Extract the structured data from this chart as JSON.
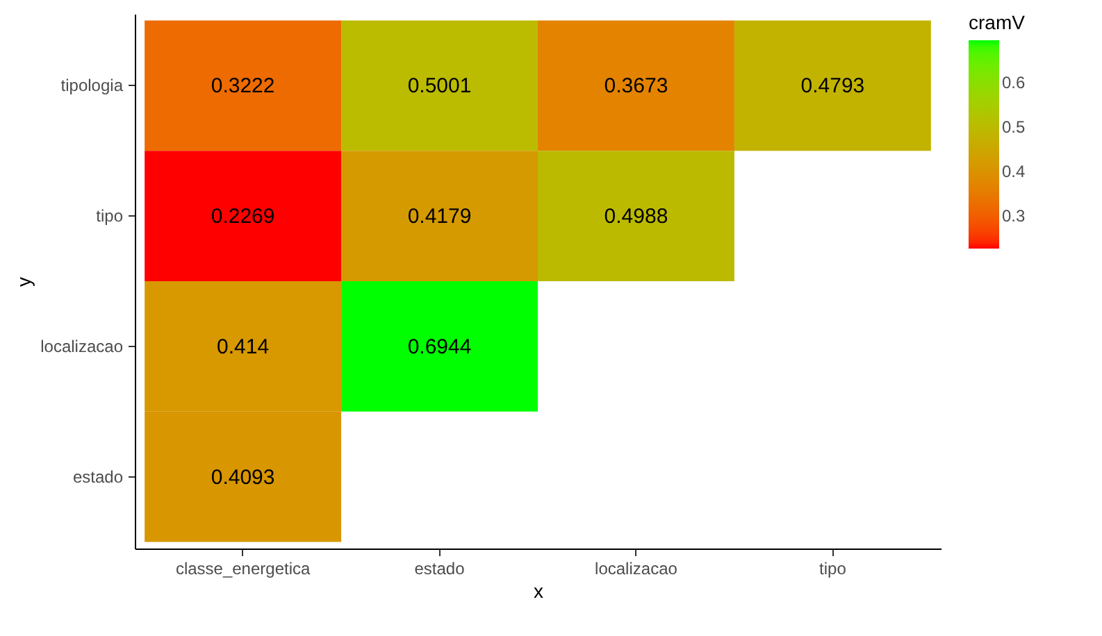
{
  "chart_data": {
    "type": "heatmap",
    "xlabel": "x",
    "ylabel": "y",
    "clabel": "cramV",
    "categories": [
      "classe_energetica",
      "estado",
      "localizacao",
      "tipo"
    ],
    "y_categories": [
      "tipologia",
      "tipo",
      "localizacao",
      "estado"
    ],
    "cells": [
      [
        0.3222,
        0.5001,
        0.3673,
        0.4793
      ],
      [
        0.2269,
        0.4179,
        0.4988,
        null
      ],
      [
        0.414,
        0.6944,
        null,
        null
      ],
      [
        0.4093,
        null,
        null,
        null
      ]
    ],
    "data_labels": true,
    "colors": [
      "#ff0000",
      "#00ff00"
    ],
    "clim": [
      0.2269,
      0.6944
    ],
    "cticks": [
      0.3,
      0.4,
      0.5,
      0.6
    ],
    "grid": false
  }
}
